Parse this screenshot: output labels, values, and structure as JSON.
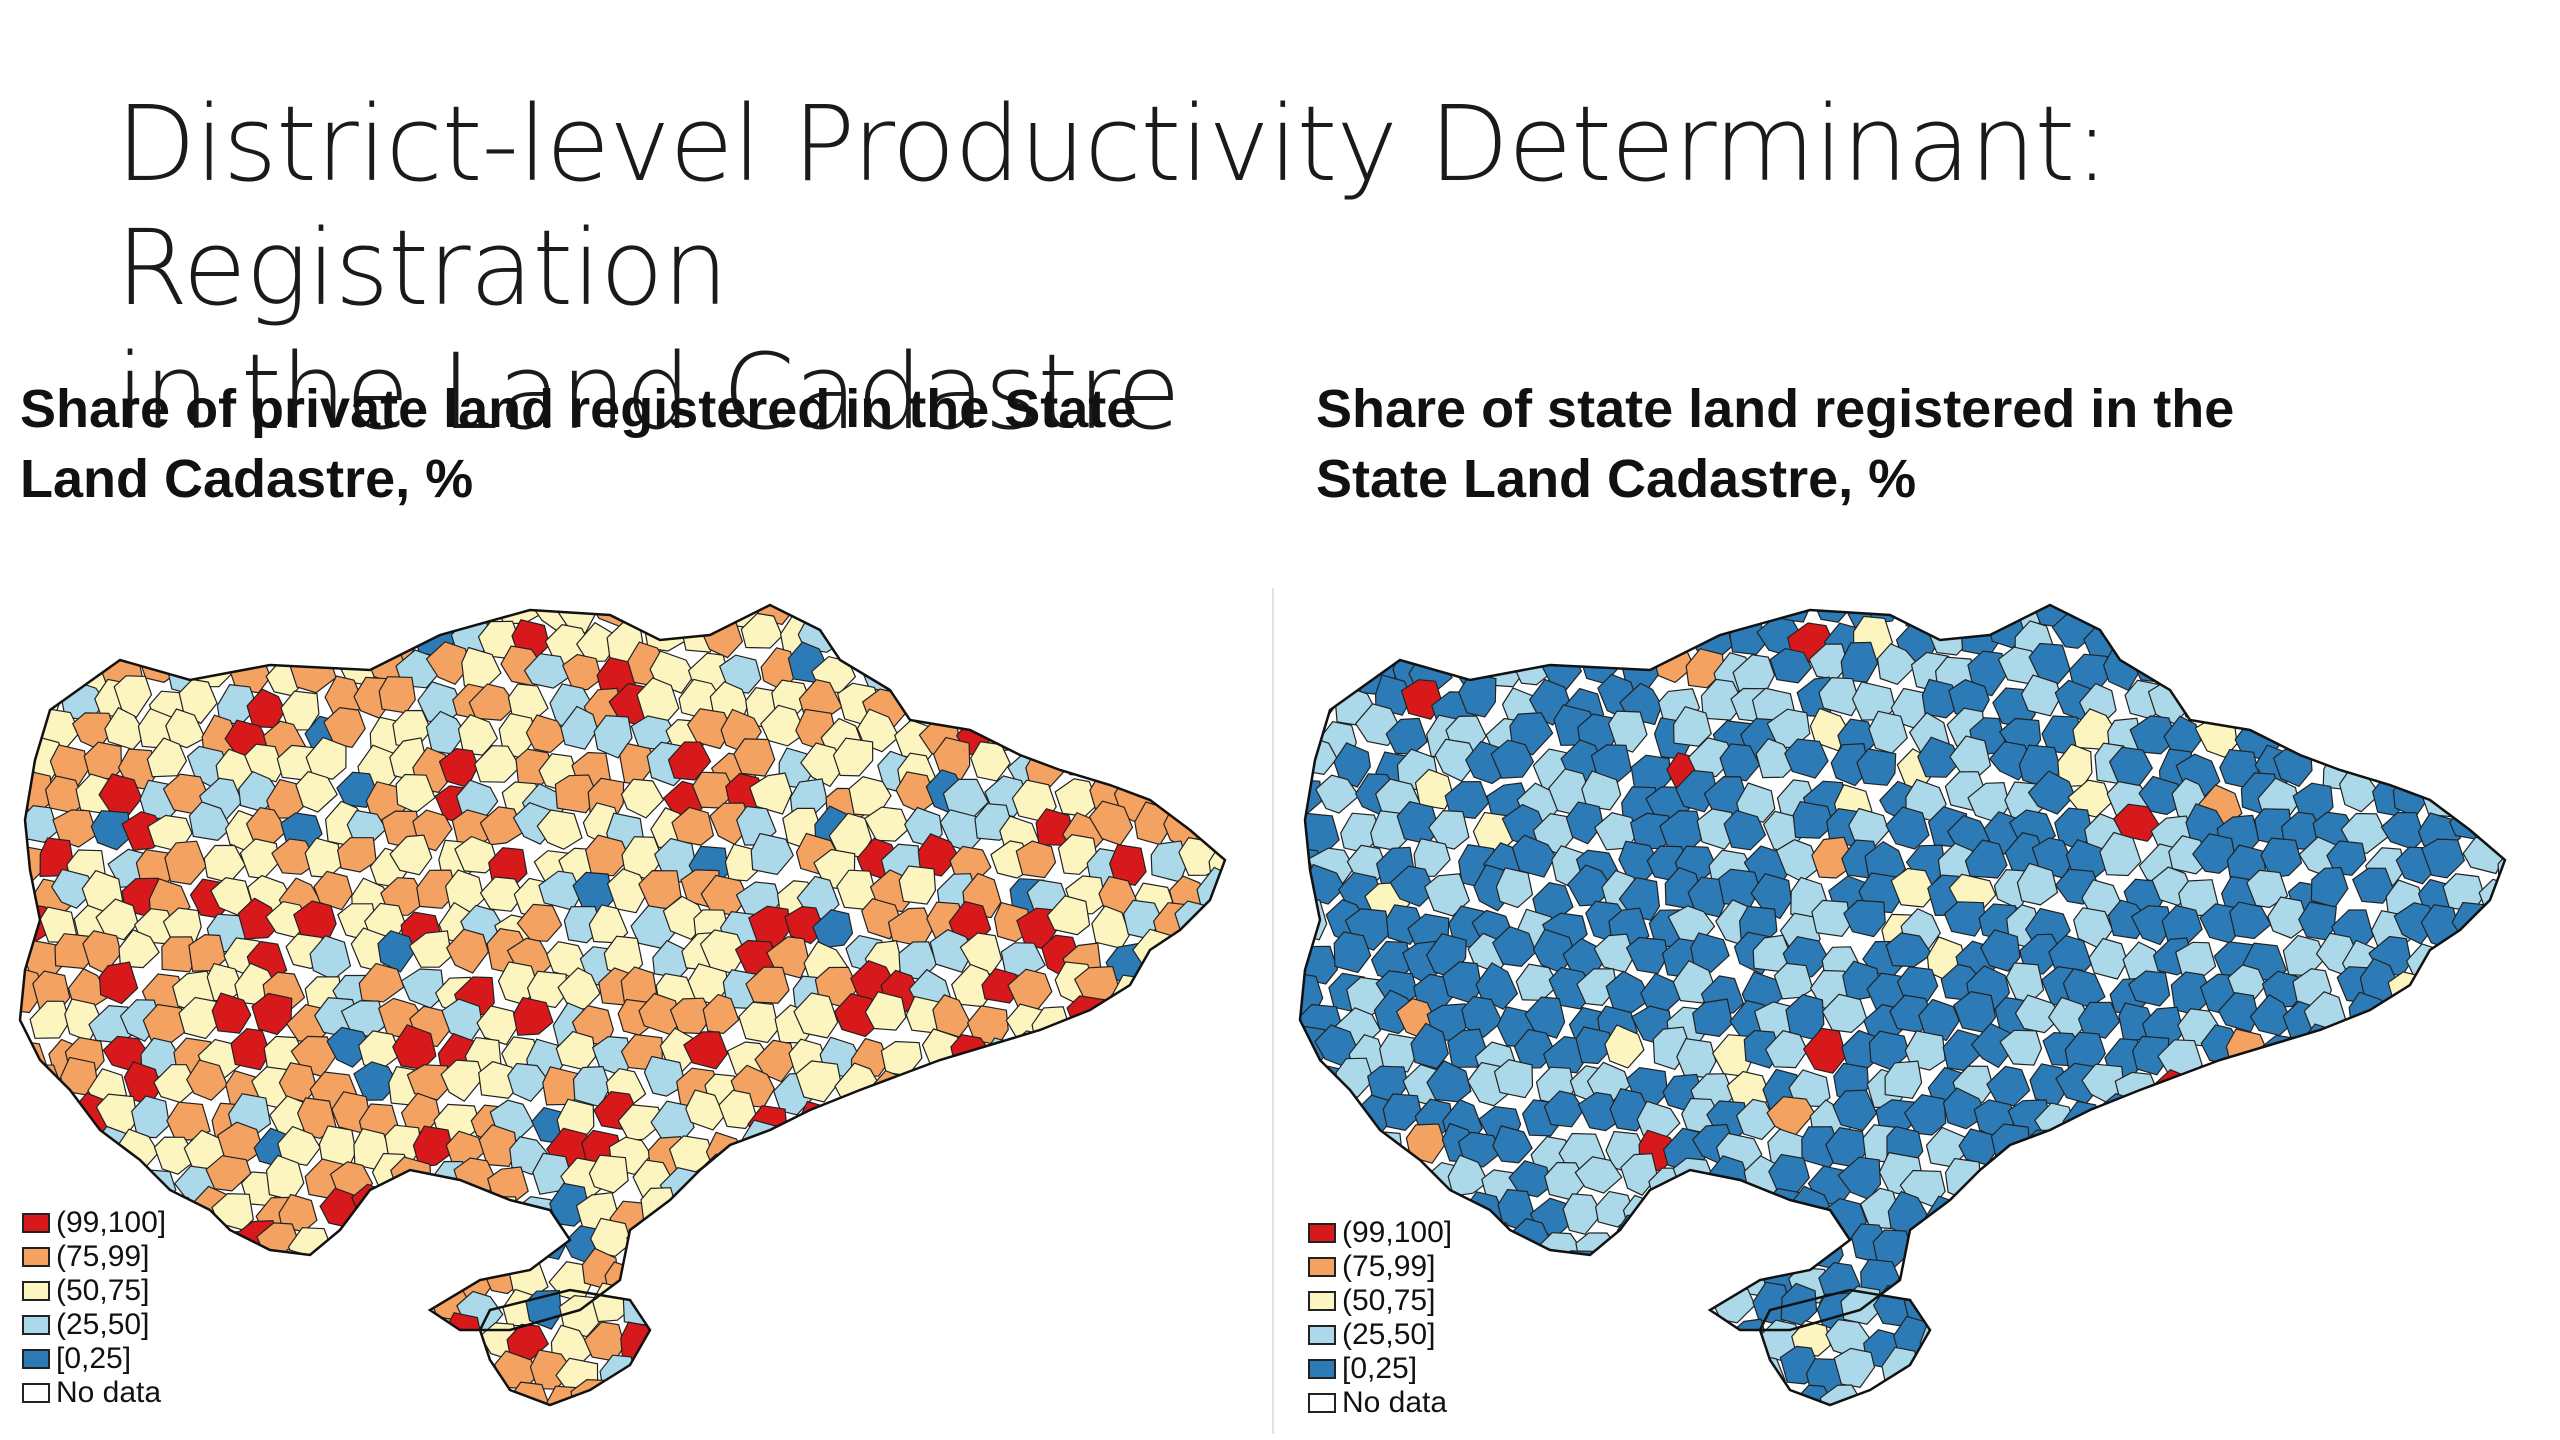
{
  "slide": {
    "title_line1": "District-level Productivity Determinant: Registration",
    "title_line2": "in the Land Cadastre"
  },
  "legend_classes": [
    {
      "label": "(99,100]",
      "color": "#d7191c"
    },
    {
      "label": "(75,99]",
      "color": "#f4a261"
    },
    {
      "label": "(50,75]",
      "color": "#fdf5c0"
    },
    {
      "label": "(25,50]",
      "color": "#abd9e9"
    },
    {
      "label": "[0,25]",
      "color": "#2c7bb6"
    },
    {
      "label": "No data",
      "color": "#ffffff"
    }
  ],
  "maps": {
    "left": {
      "title_line1": "Share of private land registered in the State",
      "title_line2": "Land Cadastre, %",
      "class_weights": [
        0.12,
        0.33,
        0.33,
        0.17,
        0.05
      ],
      "seed": 7
    },
    "right": {
      "title_line1": "Share of state land registered in the",
      "title_line2": "State Land Cadastre, %",
      "class_weights": [
        0.01,
        0.02,
        0.04,
        0.33,
        0.6
      ],
      "seed": 23
    }
  }
}
